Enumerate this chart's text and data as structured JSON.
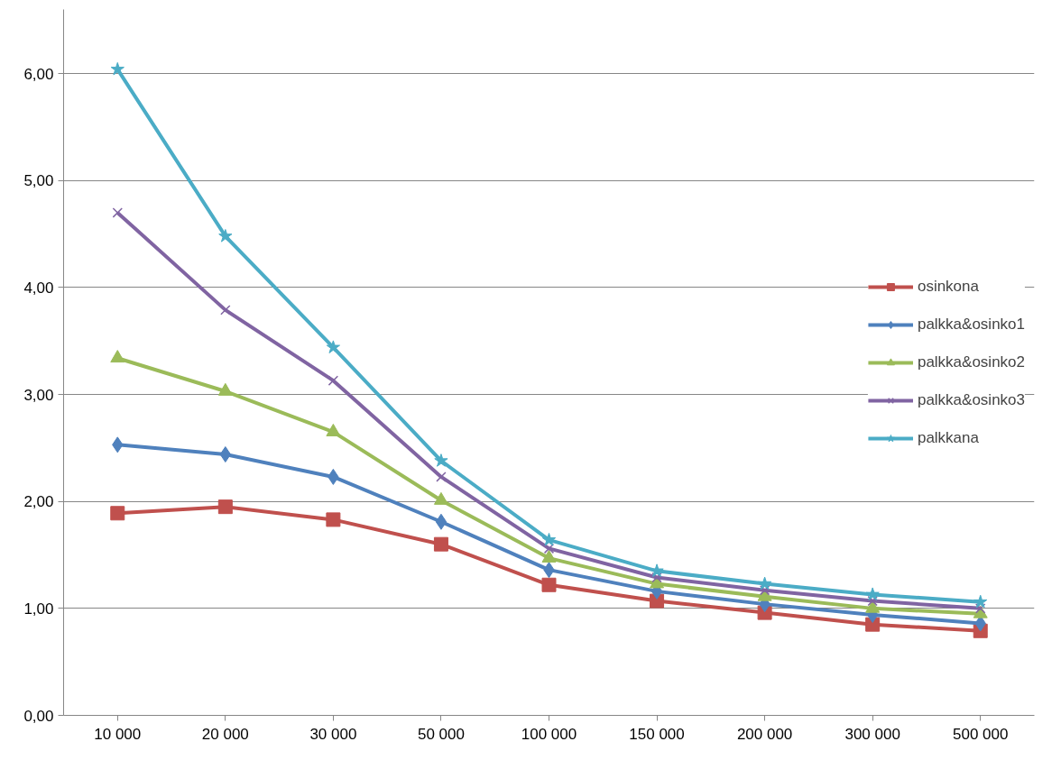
{
  "chart_data": {
    "type": "line",
    "categories": [
      "10 000",
      "20 000",
      "30 000",
      "50 000",
      "100 000",
      "150 000",
      "200 000",
      "300 000",
      "500 000"
    ],
    "series": [
      {
        "name": "osinkona",
        "color": "#c0504d",
        "marker": "square",
        "values": [
          1.89,
          1.95,
          1.83,
          1.6,
          1.22,
          1.07,
          0.96,
          0.85,
          0.79
        ]
      },
      {
        "name": "palkka&osinko1",
        "color": "#4f81bd",
        "marker": "diamond",
        "values": [
          2.53,
          2.44,
          2.23,
          1.81,
          1.36,
          1.16,
          1.04,
          0.94,
          0.86
        ]
      },
      {
        "name": "palkka&osinko2",
        "color": "#9bbb59",
        "marker": "triangle",
        "values": [
          3.34,
          3.03,
          2.65,
          2.01,
          1.47,
          1.23,
          1.11,
          1.0,
          0.95
        ]
      },
      {
        "name": "palkka&osinko3",
        "color": "#8064a2",
        "marker": "cross",
        "values": [
          4.7,
          3.79,
          3.13,
          2.23,
          1.56,
          1.29,
          1.17,
          1.07,
          1.0
        ]
      },
      {
        "name": "palkkana",
        "color": "#4bacc6",
        "marker": "star",
        "values": [
          6.04,
          4.48,
          3.44,
          2.38,
          1.64,
          1.35,
          1.23,
          1.13,
          1.06
        ]
      }
    ],
    "ylim": [
      0,
      6.6
    ],
    "yticks": [
      {
        "value": 0,
        "label": "0,00"
      },
      {
        "value": 1,
        "label": "1,00"
      },
      {
        "value": 2,
        "label": "2,00"
      },
      {
        "value": 3,
        "label": "3,00"
      },
      {
        "value": 4,
        "label": "4,00"
      },
      {
        "value": 5,
        "label": "5,00"
      },
      {
        "value": 6,
        "label": "6,00"
      }
    ],
    "grid": "y",
    "legend": "right"
  }
}
